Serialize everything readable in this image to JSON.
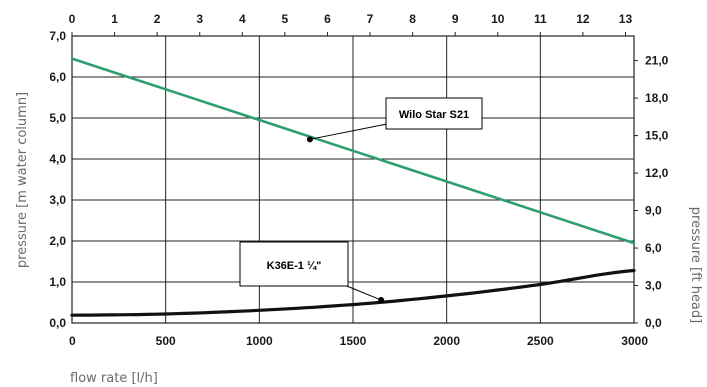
{
  "chart_data": {
    "type": "line",
    "xlabel": "flow rate [l/h]",
    "ylabel_left": "pressure [m water column]",
    "ylabel_right": "pressure [ft head]",
    "xlim": [
      0,
      3000
    ],
    "ylim": [
      0,
      7
    ],
    "x_top_range": [
      0,
      13.2
    ],
    "y_right_range": [
      0,
      22.97
    ],
    "x_ticks": [
      0,
      500,
      1000,
      1500,
      2000,
      2500,
      3000
    ],
    "x_tick_labels": [
      "0",
      "500",
      "1000",
      "1500",
      "2000",
      "2500",
      "3000"
    ],
    "y_ticks": [
      0,
      1,
      2,
      3,
      4,
      5,
      6,
      7
    ],
    "y_tick_labels": [
      "0,0",
      "1,0",
      "2,0",
      "3,0",
      "4,0",
      "5,0",
      "6,0",
      "7,0"
    ],
    "top_ticks": [
      0,
      1,
      2,
      3,
      4,
      5,
      6,
      7,
      8,
      9,
      10,
      11,
      12,
      13
    ],
    "top_tick_labels": [
      "0",
      "1",
      "2",
      "3",
      "4",
      "5",
      "6",
      "7",
      "8",
      "9",
      "10",
      "11",
      "12",
      "13"
    ],
    "right_ticks": [
      0,
      3,
      6,
      9,
      12,
      15,
      18,
      21
    ],
    "right_tick_labels": [
      "0,0",
      "3,0",
      "6,0",
      "9,0",
      "12,0",
      "15,0",
      "18,0",
      "21,0"
    ],
    "grid": true,
    "series": [
      {
        "name": "Wilo Star S21",
        "color": "#2e9e6e",
        "x": [
          0,
          500,
          1000,
          1500,
          2000,
          2500,
          3000
        ],
        "y": [
          6.45,
          5.7,
          4.95,
          4.2,
          3.45,
          2.7,
          1.95
        ]
      },
      {
        "name": "K36E-1 ¼\"",
        "color": "#111111",
        "x": [
          0,
          500,
          1000,
          1500,
          2000,
          2500,
          3000
        ],
        "y": [
          0.19,
          0.22,
          0.31,
          0.45,
          0.66,
          0.94,
          1.28
        ]
      }
    ],
    "annotations": [
      {
        "text": "Wilo Star S21",
        "series": 0,
        "x": 1270,
        "y": 4.48
      },
      {
        "text": "K36E-1 ¼\"",
        "series": 1,
        "x": 1650,
        "y": 0.56
      }
    ]
  }
}
